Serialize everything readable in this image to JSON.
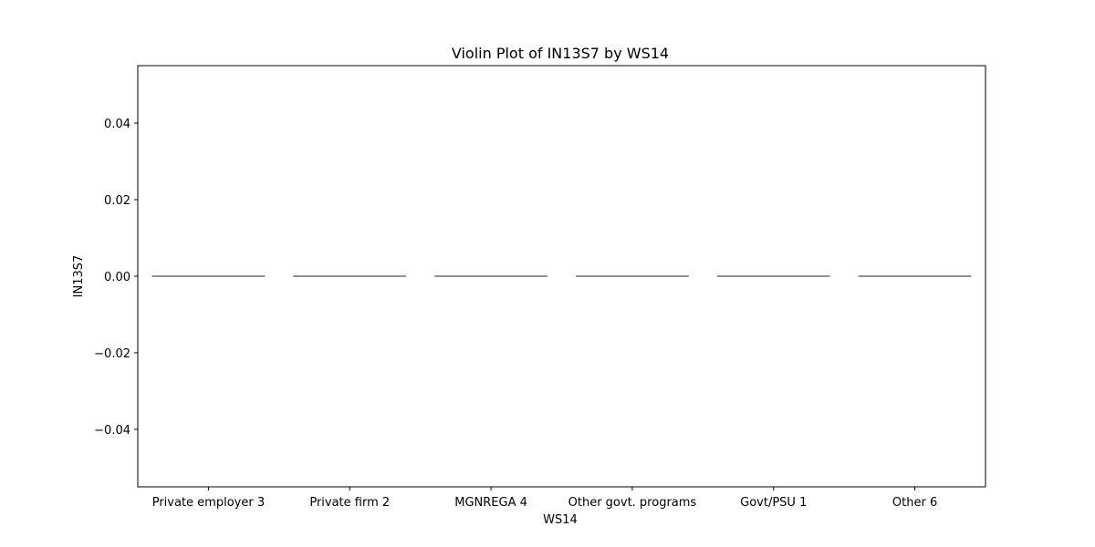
{
  "chart_data": {
    "type": "violin",
    "title": "Violin Plot of IN13S7 by WS14",
    "xlabel": "WS14",
    "ylabel": "IN13S7",
    "categories": [
      "Private employer 3",
      "Private firm 2",
      "MGNREGA 4",
      "Other govt. programs",
      "Govt/PSU 1",
      "Other 6"
    ],
    "values": [
      0,
      0,
      0,
      0,
      0,
      0
    ],
    "ylim": [
      -0.055,
      0.055
    ],
    "yticks": [
      0.04,
      0.02,
      0.0,
      -0.02,
      -0.04
    ],
    "ytick_labels": [
      "0.04",
      "0.02",
      "0.00",
      "−0.02",
      "−0.04"
    ],
    "grid": false,
    "line_color": "#4d4d4d"
  }
}
